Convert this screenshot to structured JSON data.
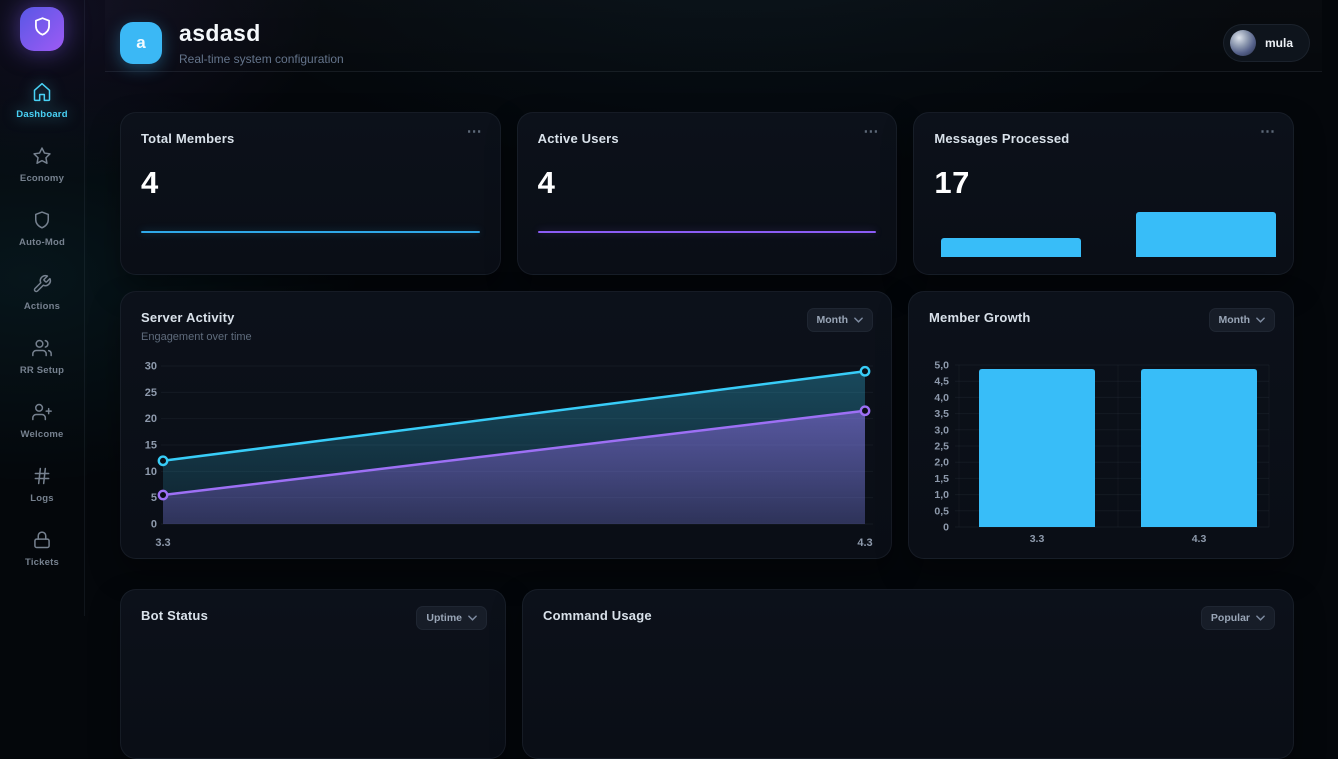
{
  "sidebar": {
    "logo_icon": "shield-icon",
    "active_color": "#49d2f6",
    "items": [
      {
        "label": "Dashboard",
        "icon": "home-icon",
        "active": true
      },
      {
        "label": "Economy",
        "icon": "star-icon",
        "active": false
      },
      {
        "label": "Auto-Mod",
        "icon": "shield-icon",
        "active": false
      },
      {
        "label": "Actions",
        "icon": "wrench-icon",
        "active": false
      },
      {
        "label": "RR Setup",
        "icon": "users-icon",
        "active": false
      },
      {
        "label": "Welcome",
        "icon": "user-plus-icon",
        "active": false
      },
      {
        "label": "Logs",
        "icon": "hash-icon",
        "active": false
      },
      {
        "label": "Tickets",
        "icon": "lock-icon",
        "active": false
      }
    ]
  },
  "header": {
    "server_avatar_letter": "a",
    "server_avatar_color": "#3bb8f5",
    "title": "asdasd",
    "subtitle": "Real-time system configuration",
    "user": {
      "name": "mula"
    }
  },
  "stat_cards": [
    {
      "title": "Total Members",
      "value": "4",
      "menu_icon": "⋯",
      "spark_type": "line",
      "spark_color": "#2fa8e8"
    },
    {
      "title": "Active Users",
      "value": "4",
      "menu_icon": "⋯",
      "spark_type": "line",
      "spark_color": "#8b5cf6"
    },
    {
      "title": "Messages Processed",
      "value": "17",
      "menu_icon": "⋯",
      "spark_type": "bars",
      "spark_color": "#38bdf8",
      "spark_values": [
        5,
        12
      ]
    }
  ],
  "chart_data": [
    {
      "id": "server_activity",
      "type": "area",
      "title": "Server Activity",
      "subtitle": "Engagement over time",
      "period_dropdown": "Month",
      "x": [
        "3.3",
        "4.3"
      ],
      "series": [
        {
          "name": "engagement-upper",
          "color": "#38cdf8",
          "values": [
            12,
            29
          ]
        },
        {
          "name": "engagement-lower",
          "color": "#9d70f5",
          "values": [
            5.5,
            21.5
          ]
        }
      ],
      "ylim": [
        0,
        30
      ],
      "yticks": [
        0,
        5,
        10,
        15,
        20,
        25,
        30
      ],
      "grid": true,
      "legend": false
    },
    {
      "id": "member_growth",
      "type": "bar",
      "title": "Member Growth",
      "period_dropdown": "Month",
      "categories": [
        "3.3",
        "4.3"
      ],
      "values": [
        5,
        5
      ],
      "ylim": [
        0,
        5
      ],
      "ytick_labels": [
        "0",
        "0,5",
        "1,0",
        "1,5",
        "2,0",
        "2,5",
        "3,0",
        "3,5",
        "4,0",
        "4,5",
        "5,0"
      ],
      "bar_color": "#38bdf8",
      "grid": true,
      "legend": false
    }
  ],
  "bottom_cards": [
    {
      "title": "Bot Status",
      "period_dropdown": "Uptime"
    },
    {
      "title": "Command Usage",
      "period_dropdown": "Popular"
    }
  ]
}
